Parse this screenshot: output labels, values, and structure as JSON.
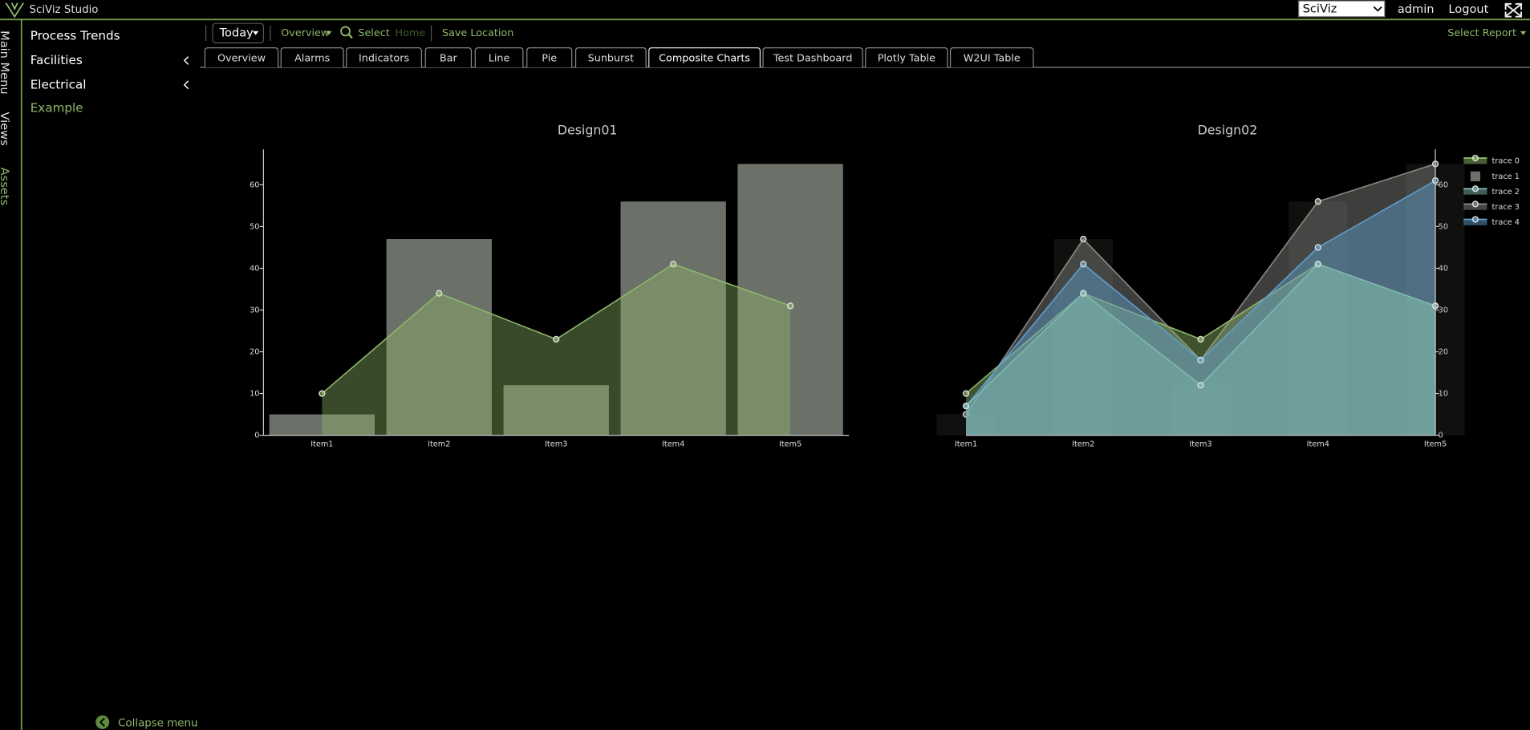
{
  "header": {
    "app": "SciViz Studio",
    "select": "SciViz",
    "user": "admin",
    "logout": "Logout"
  },
  "side_tabs": [
    "Main Menu",
    "Views",
    "Assets"
  ],
  "menu": [
    "Process Trends",
    "Facilities",
    "Electrical",
    "Example"
  ],
  "toolbar": {
    "range": "Today",
    "overview": "Overview",
    "select": "Select",
    "home": "Home",
    "save": "Save Location",
    "report": "Select Report"
  },
  "tabs": [
    "Overview",
    "Alarms",
    "Indicators",
    "Bar",
    "Line",
    "Pie",
    "Sunburst",
    "Composite Charts",
    "Test Dashboard",
    "Plotly Table",
    "W2UI Table"
  ],
  "active_tab": 7,
  "footer": "Collapse menu",
  "chart_data": [
    {
      "type": "combo",
      "title": "Design01",
      "categories": [
        "Item1",
        "Item2",
        "Item3",
        "Item4",
        "Item5"
      ],
      "ylim": [
        0,
        68.5
      ],
      "yticks": [
        0,
        10,
        20,
        30,
        40,
        50,
        60
      ],
      "y_axis_side": "left",
      "legend": false,
      "series": [
        {
          "mode": "bar",
          "color": "#6b7168",
          "values": [
            5,
            47,
            12,
            56,
            65
          ]
        },
        {
          "mode": "area",
          "color": "#8fb86a",
          "values": [
            10,
            34,
            23,
            41,
            31
          ]
        }
      ]
    },
    {
      "type": "combo",
      "title": "Design02",
      "categories": [
        "Item1",
        "Item2",
        "Item3",
        "Item4",
        "Item5"
      ],
      "ylim": [
        0,
        68.5
      ],
      "yticks": [
        0,
        10,
        20,
        30,
        40,
        50,
        60
      ],
      "y_axis_side": "right",
      "legend": true,
      "series": [
        {
          "name": "trace 0",
          "mode": "area",
          "color": "#8fb86a",
          "values": [
            10,
            34,
            23,
            41,
            31
          ]
        },
        {
          "name": "trace 1",
          "mode": "bar",
          "color": "#6b7168",
          "values": [
            5,
            47,
            12,
            56,
            65
          ]
        },
        {
          "name": "trace 2",
          "mode": "area",
          "color": "#7fb8b0",
          "values": [
            7,
            34,
            12,
            41,
            31
          ]
        },
        {
          "name": "trace 3",
          "mode": "area",
          "color": "#8a8a85",
          "values": [
            5,
            47,
            18,
            56,
            65
          ]
        },
        {
          "name": "trace 4",
          "mode": "area",
          "color": "#5f9fd0",
          "values": [
            7,
            41,
            18,
            45,
            61
          ]
        }
      ]
    }
  ]
}
